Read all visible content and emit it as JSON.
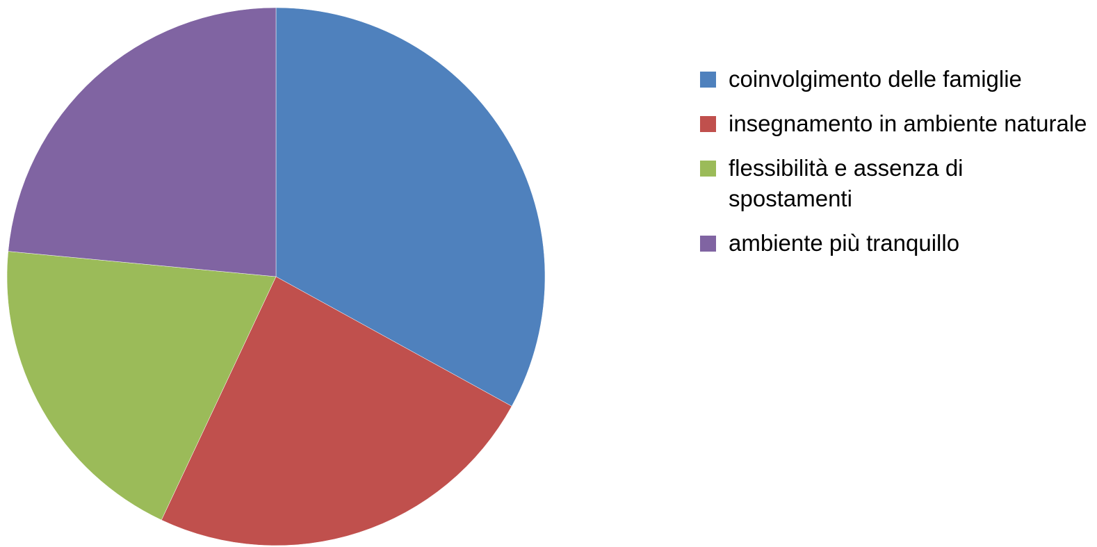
{
  "chart_data": {
    "type": "pie",
    "title": "",
    "slices": [
      {
        "label": "coinvolgimento delle famiglie",
        "value": 33,
        "color": "#4F81BD"
      },
      {
        "label": "insegnamento in ambiente naturale",
        "value": 24,
        "color": "#C0504D"
      },
      {
        "label": "flessibilità e assenza di spostamenti",
        "value": 19.5,
        "color": "#9BBB59"
      },
      {
        "label": "ambiente più tranquillo",
        "value": 23.5,
        "color": "#8064A2"
      }
    ],
    "start_angle": "12 o'clock",
    "direction": "clockwise",
    "legend_position": "right"
  }
}
